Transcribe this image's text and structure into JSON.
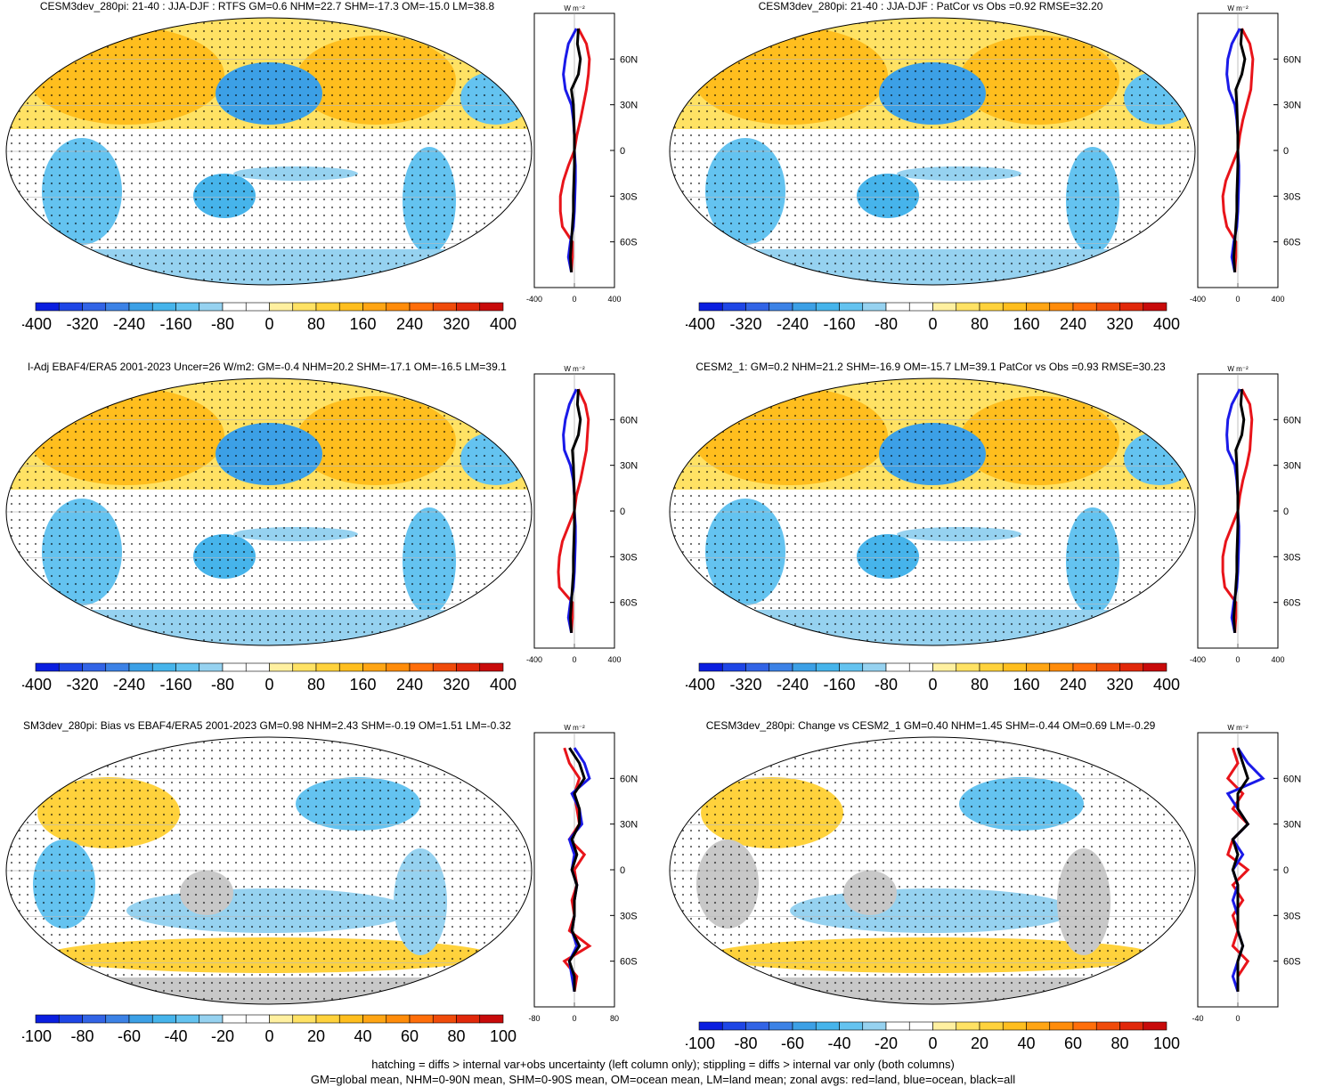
{
  "footnote": {
    "line1": "hatching = diffs > internal var+obs uncertainty (left column only); stippling = diffs > internal var only (both columns)",
    "line2": "GM=global mean, NHM=0-90N mean, SHM=0-90S mean, OM=ocean mean, LM=land mean; zonal avgs: red=land, blue=ocean, black=all"
  },
  "colors": {
    "land": "#e8141a",
    "ocean": "#1a1ae8",
    "all": "#000000",
    "missing": "#c8c8c8",
    "palette": [
      "#0a1ee0",
      "#1e46e6",
      "#3264e6",
      "#3c82e6",
      "#3ca0e6",
      "#46b4eb",
      "#64c3f0",
      "#96d2f0",
      "#ffffff",
      "#ffffff",
      "#fff0a0",
      "#ffe264",
      "#ffd23c",
      "#ffbe1e",
      "#ffa514",
      "#ff8c0a",
      "#ff6e0a",
      "#f04b0a",
      "#e1280a",
      "#c80a0a"
    ]
  },
  "chart_data": [
    {
      "type": "heatmap",
      "title": "CESM3dev_280pi: 21-40 : JJA-DJF : RTFS GM=0.6 NHM=22.7 SHM=-17.3 OM=-15.0 LM=38.8",
      "colorbar_ticks": [
        "-400",
        "-320",
        "-240",
        "-160",
        "-80",
        "0",
        "80",
        "160",
        "240",
        "320",
        "400"
      ],
      "zonal": {
        "unit": "W m⁻²",
        "xlim": [
          -400,
          400
        ],
        "xticks": [
          "-400",
          "0",
          "400"
        ],
        "lat_ticks": [
          "60N",
          "30N",
          "0",
          "30S",
          "60S"
        ],
        "lat": [
          80,
          70,
          60,
          50,
          40,
          30,
          20,
          10,
          0,
          -10,
          -20,
          -30,
          -40,
          -50,
          -60,
          -70,
          -80
        ],
        "land": [
          40,
          120,
          150,
          140,
          120,
          90,
          60,
          25,
          0,
          -60,
          -110,
          -140,
          -140,
          -120,
          -20,
          -20,
          -30
        ],
        "ocean": [
          20,
          -60,
          -90,
          -110,
          -90,
          -30,
          -10,
          0,
          0,
          10,
          10,
          5,
          0,
          -10,
          -40,
          -60,
          -30
        ],
        "all": [
          40,
          30,
          60,
          40,
          -30,
          -10,
          -5,
          0,
          0,
          0,
          -5,
          -10,
          -10,
          -20,
          -30,
          -40,
          -30
        ]
      }
    },
    {
      "type": "heatmap",
      "title": "CESM3dev_280pi: 21-40 : JJA-DJF : PatCor vs Obs =0.92 RMSE=32.20",
      "colorbar_ticks": [
        "-400",
        "-320",
        "-240",
        "-160",
        "-80",
        "0",
        "80",
        "160",
        "240",
        "320",
        "400"
      ],
      "zonal": {
        "unit": "W m⁻²",
        "xlim": [
          -400,
          400
        ],
        "xticks": [
          "-400",
          "0",
          "400"
        ],
        "lat_ticks": [
          "60N",
          "30N",
          "0",
          "30S",
          "60S"
        ],
        "lat": [
          80,
          70,
          60,
          50,
          40,
          30,
          20,
          10,
          0,
          -10,
          -20,
          -30,
          -40,
          -50,
          -60,
          -70,
          -80
        ],
        "land": [
          40,
          120,
          150,
          140,
          130,
          90,
          50,
          20,
          0,
          -60,
          -120,
          -150,
          -140,
          -110,
          -20,
          -20,
          -30
        ],
        "ocean": [
          20,
          -60,
          -100,
          -110,
          -90,
          -30,
          -10,
          0,
          0,
          10,
          10,
          5,
          0,
          -10,
          -40,
          -60,
          -30
        ],
        "all": [
          40,
          30,
          70,
          40,
          -20,
          -10,
          -5,
          0,
          0,
          0,
          -5,
          -10,
          -10,
          -20,
          -30,
          -40,
          -30
        ]
      }
    },
    {
      "type": "heatmap",
      "title": "l-Adj EBAF4/ERA5 2001-2023 Uncer=26 W/m2: GM=-0.4 NHM=20.2 SHM=-17.1 OM=-16.5 LM=39.1",
      "colorbar_ticks": [
        "-400",
        "-320",
        "-240",
        "-160",
        "-80",
        "0",
        "80",
        "160",
        "240",
        "320",
        "400"
      ],
      "zonal": {
        "unit": "W m⁻²",
        "xlim": [
          -400,
          400
        ],
        "xticks": [
          "-400",
          "0",
          "400"
        ],
        "lat_ticks": [
          "60N",
          "30N",
          "0",
          "30S",
          "60S"
        ],
        "lat": [
          80,
          70,
          60,
          50,
          40,
          30,
          20,
          10,
          0,
          -10,
          -20,
          -30,
          -40,
          -50,
          -60,
          -70,
          -80
        ],
        "land": [
          40,
          110,
          140,
          130,
          120,
          90,
          60,
          20,
          0,
          -60,
          -120,
          -150,
          -160,
          -150,
          -20,
          -20,
          -30
        ],
        "ocean": [
          20,
          -50,
          -90,
          -110,
          -100,
          -40,
          -10,
          0,
          0,
          10,
          10,
          5,
          0,
          -10,
          -40,
          -60,
          -30
        ],
        "all": [
          40,
          30,
          60,
          40,
          -20,
          -10,
          -5,
          0,
          0,
          0,
          -5,
          -10,
          -10,
          -20,
          -30,
          -40,
          -30
        ]
      }
    },
    {
      "type": "heatmap",
      "title": "CESM2_1: GM=0.2 NHM=21.2 SHM=-16.9 OM=-15.7 LM=39.1 PatCor vs Obs =0.93 RMSE=30.23",
      "colorbar_ticks": [
        "-400",
        "-320",
        "-240",
        "-160",
        "-80",
        "0",
        "80",
        "160",
        "240",
        "320",
        "400"
      ],
      "zonal": {
        "unit": "W m⁻²",
        "xlim": [
          -400,
          400
        ],
        "xticks": [
          "-400",
          "0",
          "400"
        ],
        "lat_ticks": [
          "60N",
          "30N",
          "0",
          "30S",
          "60S"
        ],
        "lat": [
          80,
          70,
          60,
          50,
          40,
          30,
          20,
          10,
          0,
          -10,
          -20,
          -30,
          -40,
          -50,
          -60,
          -70,
          -80
        ],
        "land": [
          40,
          120,
          140,
          130,
          120,
          90,
          50,
          20,
          0,
          -60,
          -120,
          -150,
          -150,
          -130,
          -20,
          -20,
          -30
        ],
        "ocean": [
          20,
          -60,
          -100,
          -110,
          -100,
          -30,
          -10,
          0,
          0,
          10,
          10,
          5,
          0,
          -10,
          -40,
          -60,
          -30
        ],
        "all": [
          40,
          30,
          60,
          40,
          -20,
          -10,
          -5,
          0,
          0,
          0,
          -5,
          -10,
          -10,
          -20,
          -30,
          -40,
          -30
        ]
      }
    },
    {
      "type": "heatmap",
      "title": "SM3dev_280pi: Bias vs EBAF4/ERA5 2001-2023 GM=0.98 NHM=2.43 SHM=-0.19 OM=1.51 LM=-0.32",
      "colorbar_ticks": [
        "-100",
        "-80",
        "-60",
        "-40",
        "-20",
        "0",
        "20",
        "40",
        "60",
        "80",
        "100"
      ],
      "zonal": {
        "unit": "W m⁻²",
        "xlim": [
          -80,
          80
        ],
        "xticks": [
          "-80",
          "0",
          "80"
        ],
        "lat_ticks": [
          "60N",
          "30N",
          "0",
          "30S",
          "60S"
        ],
        "lat": [
          80,
          70,
          60,
          50,
          40,
          30,
          20,
          10,
          0,
          -10,
          -20,
          -30,
          -40,
          -50,
          -60,
          -70,
          -80
        ],
        "land": [
          -20,
          -10,
          10,
          0,
          5,
          10,
          -10,
          20,
          0,
          5,
          -5,
          0,
          -10,
          30,
          -20,
          5,
          0
        ],
        "ocean": [
          0,
          20,
          30,
          -5,
          10,
          15,
          -10,
          0,
          -5,
          5,
          0,
          0,
          -5,
          5,
          -10,
          -5,
          0
        ],
        "all": [
          -10,
          10,
          20,
          0,
          10,
          10,
          -5,
          5,
          -5,
          5,
          0,
          0,
          -5,
          10,
          -10,
          0,
          0
        ]
      }
    },
    {
      "type": "heatmap",
      "title": "CESM3dev_280pi: Change vs CESM2_1 GM=0.40 NHM=1.45 SHM=-0.44 OM=0.69 LM=-0.29",
      "colorbar_ticks": [
        "-100",
        "-80",
        "-60",
        "-40",
        "-20",
        "0",
        "20",
        "40",
        "60",
        "80",
        "100"
      ],
      "zonal": {
        "unit": "W m⁻²",
        "xlim": [
          -40,
          40
        ],
        "xticks": [
          "-40",
          "0"
        ],
        "lat_ticks": [
          "60N",
          "30N",
          "0",
          "30S",
          "60S"
        ],
        "lat": [
          80,
          70,
          60,
          50,
          40,
          30,
          20,
          10,
          0,
          -10,
          -20,
          -30,
          -40,
          -50,
          -60,
          -70,
          -80
        ],
        "land": [
          -5,
          0,
          -10,
          5,
          -5,
          10,
          -5,
          -10,
          10,
          -5,
          5,
          -5,
          0,
          -5,
          10,
          0,
          0
        ],
        "ocean": [
          0,
          10,
          25,
          -10,
          0,
          10,
          -5,
          5,
          -5,
          0,
          -5,
          0,
          0,
          5,
          0,
          -5,
          0
        ],
        "all": [
          0,
          5,
          10,
          0,
          0,
          10,
          -5,
          0,
          -5,
          0,
          0,
          0,
          0,
          5,
          0,
          0,
          0
        ]
      }
    }
  ]
}
